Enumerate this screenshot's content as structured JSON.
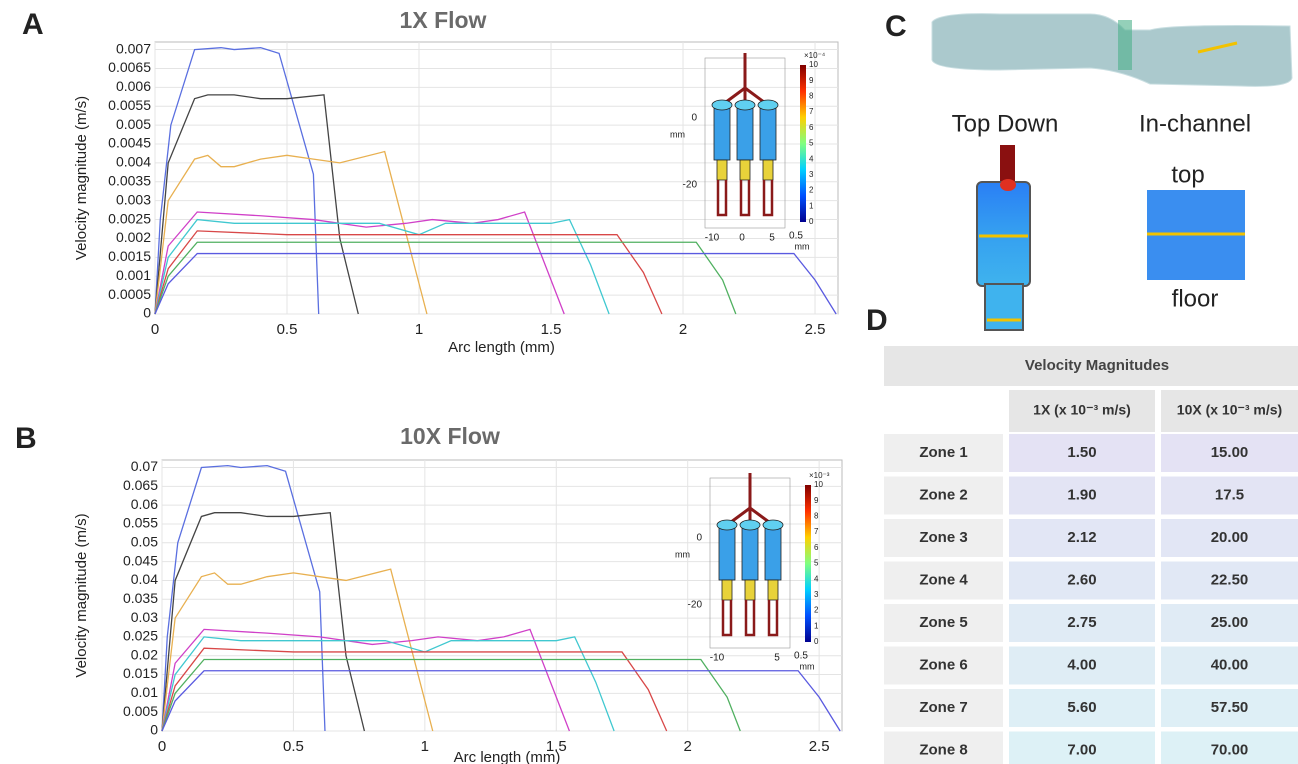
{
  "panels": {
    "a": "A",
    "b": "B",
    "c": "C",
    "d": "D"
  },
  "chart_data": [
    {
      "type": "line",
      "title": "1X Flow",
      "xlabel": "Arc length (mm)",
      "ylabel": "Velocity magnitude (m/s)",
      "xlim": [
        0,
        2.587
      ],
      "xticks": [
        0,
        0.5,
        1,
        1.5,
        2,
        2.5
      ],
      "ylim": [
        0,
        0.0072
      ],
      "yticks": [
        0,
        0.0005,
        0.001,
        0.0015,
        0.002,
        0.0025,
        0.003,
        0.0035,
        0.004,
        0.0045,
        0.005,
        0.0055,
        0.006,
        0.0065,
        0.007
      ],
      "grid": true,
      "series": [
        {
          "color": "#5a6fe0",
          "x": [
            0,
            0.02,
            0.06,
            0.15,
            0.25,
            0.3,
            0.4,
            0.47,
            0.6,
            0.62
          ],
          "values": [
            0,
            0.0025,
            0.005,
            0.007,
            0.00705,
            0.007,
            0.00705,
            0.0069,
            0.0037,
            0
          ]
        },
        {
          "color": "#444444",
          "x": [
            0,
            0.05,
            0.15,
            0.2,
            0.3,
            0.4,
            0.5,
            0.64,
            0.7,
            0.77
          ],
          "values": [
            0,
            0.004,
            0.0057,
            0.0058,
            0.0058,
            0.0057,
            0.0057,
            0.0058,
            0.002,
            0
          ]
        },
        {
          "color": "#e8b050",
          "x": [
            0,
            0.05,
            0.15,
            0.2,
            0.25,
            0.3,
            0.4,
            0.5,
            0.6,
            0.7,
            0.87,
            1.03
          ],
          "values": [
            0,
            0.003,
            0.0041,
            0.0042,
            0.0039,
            0.0039,
            0.0041,
            0.0042,
            0.0041,
            0.004,
            0.0043,
            0
          ]
        },
        {
          "color": "#d040c8",
          "x": [
            0,
            0.05,
            0.16,
            0.4,
            0.6,
            0.8,
            0.95,
            1.05,
            1.2,
            1.3,
            1.4,
            1.55
          ],
          "values": [
            0,
            0.0018,
            0.0027,
            0.0026,
            0.0025,
            0.0023,
            0.0024,
            0.0025,
            0.0024,
            0.0025,
            0.0027,
            0
          ]
        },
        {
          "color": "#40c8d0",
          "x": [
            0,
            0.05,
            0.16,
            0.3,
            0.6,
            0.85,
            1.0,
            1.1,
            1.3,
            1.5,
            1.57,
            1.65,
            1.72
          ],
          "values": [
            0,
            0.0015,
            0.0025,
            0.0024,
            0.0024,
            0.0024,
            0.0021,
            0.0024,
            0.0024,
            0.0024,
            0.0025,
            0.0013,
            0
          ]
        },
        {
          "color": "#d84848",
          "x": [
            0,
            0.05,
            0.16,
            0.5,
            1.0,
            1.5,
            1.75,
            1.85,
            1.92
          ],
          "values": [
            0,
            0.0012,
            0.0022,
            0.0021,
            0.0021,
            0.0021,
            0.0021,
            0.0011,
            0
          ]
        },
        {
          "color": "#50b060",
          "x": [
            0,
            0.05,
            0.16,
            0.5,
            1.0,
            1.5,
            2.05,
            2.15,
            2.2
          ],
          "values": [
            0,
            0.001,
            0.0019,
            0.0019,
            0.0019,
            0.0019,
            0.0019,
            0.0009,
            0
          ]
        },
        {
          "color": "#5a5ae0",
          "x": [
            0,
            0.05,
            0.16,
            0.5,
            1.0,
            1.5,
            2.0,
            2.42,
            2.5,
            2.58
          ],
          "values": [
            0,
            0.0008,
            0.0016,
            0.0016,
            0.0016,
            0.0016,
            0.0016,
            0.0016,
            0.0009,
            0
          ]
        }
      ],
      "inset": {
        "scale_label": "×10⁻⁴",
        "colorbar_ticks": [
          0,
          1,
          2,
          3,
          4,
          5,
          6,
          7,
          8,
          9,
          10
        ],
        "y_labels": [
          "0",
          "-20"
        ],
        "y_unit": "mm",
        "x_labels": [
          "-10",
          "0",
          "5"
        ],
        "bar_label": "0.5",
        "x_unit": "mm"
      }
    },
    {
      "type": "line",
      "title": "10X Flow",
      "xlabel": "Arc length (mm)",
      "ylabel": "Velocity magnitude (m/s)",
      "xlim": [
        0,
        2.587
      ],
      "xticks": [
        0,
        0.5,
        1,
        1.5,
        2,
        2.5
      ],
      "ylim": [
        0,
        0.072
      ],
      "yticks": [
        0,
        0.005,
        0.01,
        0.015,
        0.02,
        0.025,
        0.03,
        0.035,
        0.04,
        0.045,
        0.05,
        0.055,
        0.06,
        0.065,
        0.07
      ],
      "grid": true,
      "series": [
        {
          "color": "#5a6fe0",
          "x": [
            0,
            0.02,
            0.06,
            0.15,
            0.25,
            0.3,
            0.4,
            0.47,
            0.6,
            0.62
          ],
          "values": [
            0,
            0.025,
            0.05,
            0.07,
            0.0705,
            0.07,
            0.0705,
            0.069,
            0.037,
            0
          ]
        },
        {
          "color": "#444444",
          "x": [
            0,
            0.05,
            0.15,
            0.2,
            0.3,
            0.4,
            0.5,
            0.64,
            0.7,
            0.77
          ],
          "values": [
            0,
            0.04,
            0.057,
            0.058,
            0.058,
            0.057,
            0.057,
            0.058,
            0.02,
            0
          ]
        },
        {
          "color": "#e8b050",
          "x": [
            0,
            0.05,
            0.15,
            0.2,
            0.25,
            0.3,
            0.4,
            0.5,
            0.6,
            0.7,
            0.87,
            1.03
          ],
          "values": [
            0,
            0.03,
            0.041,
            0.042,
            0.039,
            0.039,
            0.041,
            0.042,
            0.041,
            0.04,
            0.043,
            0
          ]
        },
        {
          "color": "#d040c8",
          "x": [
            0,
            0.05,
            0.16,
            0.4,
            0.6,
            0.8,
            0.95,
            1.05,
            1.2,
            1.3,
            1.4,
            1.55
          ],
          "values": [
            0,
            0.018,
            0.027,
            0.026,
            0.025,
            0.023,
            0.024,
            0.025,
            0.024,
            0.025,
            0.027,
            0
          ]
        },
        {
          "color": "#40c8d0",
          "x": [
            0,
            0.05,
            0.16,
            0.3,
            0.6,
            0.85,
            1.0,
            1.1,
            1.3,
            1.5,
            1.57,
            1.65,
            1.72
          ],
          "values": [
            0,
            0.015,
            0.025,
            0.024,
            0.024,
            0.024,
            0.021,
            0.024,
            0.024,
            0.024,
            0.025,
            0.013,
            0
          ]
        },
        {
          "color": "#d84848",
          "x": [
            0,
            0.05,
            0.16,
            0.5,
            1.0,
            1.5,
            1.75,
            1.85,
            1.92
          ],
          "values": [
            0,
            0.012,
            0.022,
            0.021,
            0.021,
            0.021,
            0.021,
            0.011,
            0
          ]
        },
        {
          "color": "#50b060",
          "x": [
            0,
            0.05,
            0.16,
            0.5,
            1.0,
            1.5,
            2.05,
            2.15,
            2.2
          ],
          "values": [
            0,
            0.01,
            0.019,
            0.019,
            0.019,
            0.019,
            0.019,
            0.009,
            0
          ]
        },
        {
          "color": "#5a5ae0",
          "x": [
            0,
            0.05,
            0.16,
            0.5,
            1.0,
            1.5,
            2.0,
            2.42,
            2.5,
            2.58
          ],
          "values": [
            0,
            0.008,
            0.016,
            0.016,
            0.016,
            0.016,
            0.016,
            0.016,
            0.009,
            0
          ]
        }
      ],
      "inset": {
        "scale_label": "×10⁻³",
        "colorbar_ticks": [
          0,
          1,
          2,
          3,
          4,
          5,
          6,
          7,
          8,
          9,
          10
        ],
        "y_labels": [
          "0",
          "-20"
        ],
        "y_unit": "mm",
        "x_labels": [
          "-10",
          "5"
        ],
        "bar_label": "0.5",
        "x_unit": "mm"
      }
    }
  ],
  "panel_c": {
    "views": [
      "Top Down",
      "In-channel"
    ],
    "top": "top",
    "floor": "floor"
  },
  "table": {
    "title": "Velocity Magnitudes",
    "columns": [
      "1X (x 10⁻³ m/s)",
      "10X (x 10⁻³ m/s)"
    ],
    "rows": [
      [
        "Zone 1",
        "1.50",
        "15.00"
      ],
      [
        "Zone 2",
        "1.90",
        "17.5"
      ],
      [
        "Zone 3",
        "2.12",
        "20.00"
      ],
      [
        "Zone 4",
        "2.60",
        "22.50"
      ],
      [
        "Zone 5",
        "2.75",
        "25.00"
      ],
      [
        "Zone 6",
        "4.00",
        "40.00"
      ],
      [
        "Zone 7",
        "5.60",
        "57.50"
      ],
      [
        "Zone 8",
        "7.00",
        "70.00"
      ]
    ]
  }
}
